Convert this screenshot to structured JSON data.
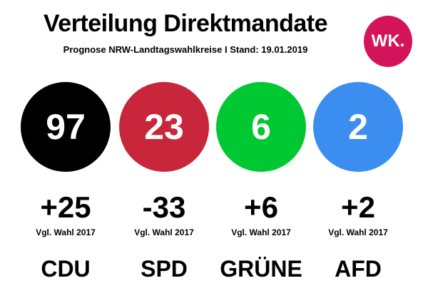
{
  "header": {
    "title": "Verteilung Direktmandate",
    "subtitle": "Prognose NRW-Landtagswahlkreise I Stand: 19.01.2019",
    "logo": "WK."
  },
  "colors": {
    "logo": "#d4145a"
  },
  "parties": [
    {
      "name": "CDU",
      "seats": "97",
      "change": "+25",
      "compare": "Vgl. Wahl 2017",
      "color": "#000000"
    },
    {
      "name": "SPD",
      "seats": "23",
      "change": "-33",
      "compare": "Vgl. Wahl 2017",
      "color": "#c8263a"
    },
    {
      "name": "GRÜNE",
      "seats": "6",
      "change": "+6",
      "compare": "Vgl. Wahl 2017",
      "color": "#00c832"
    },
    {
      "name": "AFD",
      "seats": "2",
      "change": "+2",
      "compare": "Vgl. Wahl 2017",
      "color": "#3b8ef0"
    }
  ]
}
